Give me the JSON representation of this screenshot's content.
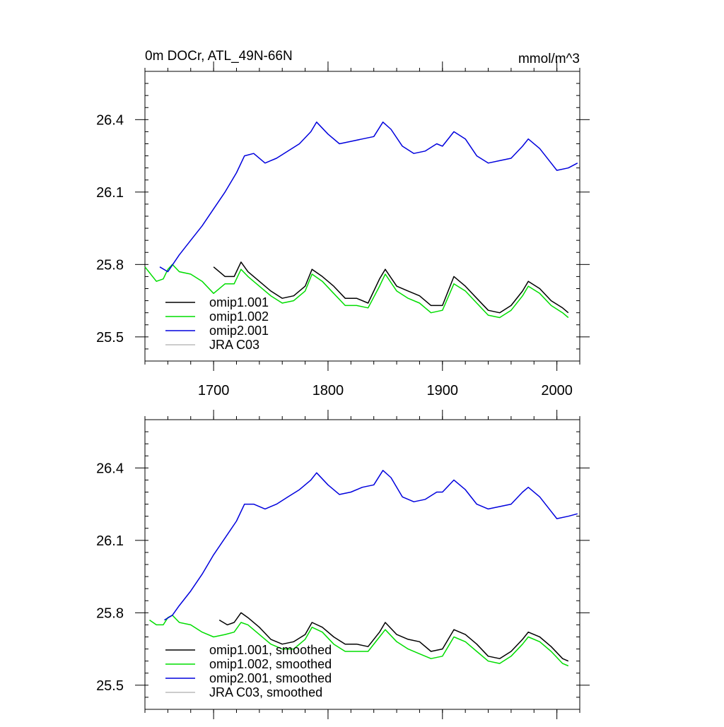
{
  "chart_data": [
    {
      "type": "line",
      "title": "0m DOCr, ATL_49N-66N",
      "units": "mmol/m^3",
      "xlim": [
        1640,
        2020
      ],
      "ylim": [
        25.4,
        26.6
      ],
      "xticks": [
        1700,
        1800,
        1900,
        2000
      ],
      "xtick_labels": [
        "1700",
        "1800",
        "1900",
        "2000"
      ],
      "yticks": [
        25.5,
        25.8,
        26.1,
        26.4
      ],
      "ytick_labels": [
        "25.5",
        "25.8",
        "26.1",
        "26.4"
      ],
      "legend_position": "bottom-left",
      "series": [
        {
          "name": "omip1.001",
          "color": "#000000",
          "x": [
            1700,
            1710,
            1718,
            1724,
            1730,
            1740,
            1750,
            1760,
            1770,
            1780,
            1786,
            1795,
            1805,
            1815,
            1825,
            1835,
            1845,
            1850,
            1860,
            1870,
            1880,
            1890,
            1900,
            1910,
            1920,
            1930,
            1940,
            1950,
            1960,
            1970,
            1975,
            1985,
            1995,
            2005,
            2010
          ],
          "y": [
            25.79,
            25.75,
            25.75,
            25.81,
            25.77,
            25.73,
            25.69,
            25.66,
            25.67,
            25.71,
            25.78,
            25.75,
            25.71,
            25.66,
            25.66,
            25.64,
            25.74,
            25.78,
            25.71,
            25.69,
            25.67,
            25.63,
            25.63,
            25.75,
            25.71,
            25.66,
            25.61,
            25.6,
            25.63,
            25.69,
            25.73,
            25.7,
            25.65,
            25.62,
            25.6
          ]
        },
        {
          "name": "omip1.002",
          "color": "#00dd00",
          "x": [
            1640,
            1650,
            1656,
            1660,
            1664,
            1670,
            1680,
            1690,
            1700,
            1710,
            1718,
            1724,
            1730,
            1740,
            1750,
            1760,
            1770,
            1780,
            1786,
            1795,
            1805,
            1815,
            1825,
            1835,
            1845,
            1850,
            1860,
            1870,
            1880,
            1890,
            1900,
            1910,
            1920,
            1930,
            1940,
            1950,
            1960,
            1970,
            1975,
            1985,
            1995,
            2005,
            2010
          ],
          "y": [
            25.79,
            25.73,
            25.74,
            25.78,
            25.8,
            25.77,
            25.76,
            25.73,
            25.68,
            25.72,
            25.72,
            25.78,
            25.75,
            25.71,
            25.67,
            25.64,
            25.65,
            25.69,
            25.76,
            25.73,
            25.68,
            25.63,
            25.63,
            25.62,
            25.71,
            25.76,
            25.69,
            25.66,
            25.64,
            25.6,
            25.61,
            25.72,
            25.69,
            25.64,
            25.59,
            25.58,
            25.61,
            25.67,
            25.71,
            25.68,
            25.63,
            25.6,
            25.58
          ]
        },
        {
          "name": "omip2.001",
          "color": "#0000dd",
          "x": [
            1653,
            1660,
            1670,
            1680,
            1690,
            1700,
            1710,
            1720,
            1727,
            1735,
            1745,
            1755,
            1765,
            1775,
            1785,
            1790,
            1800,
            1810,
            1820,
            1830,
            1840,
            1848,
            1855,
            1865,
            1875,
            1885,
            1895,
            1900,
            1910,
            1920,
            1930,
            1940,
            1950,
            1960,
            1970,
            1975,
            1985,
            1995,
            2000,
            2010,
            2018
          ],
          "y": [
            25.79,
            25.77,
            25.84,
            25.9,
            25.96,
            26.03,
            26.1,
            26.18,
            26.25,
            26.26,
            26.22,
            26.24,
            26.27,
            26.3,
            26.35,
            26.39,
            26.34,
            26.3,
            26.31,
            26.32,
            26.33,
            26.39,
            26.36,
            26.29,
            26.26,
            26.27,
            26.3,
            26.29,
            26.35,
            26.32,
            26.25,
            26.22,
            26.23,
            26.24,
            26.29,
            26.32,
            26.28,
            26.22,
            26.19,
            26.2,
            26.22
          ]
        },
        {
          "name": "JRA C03",
          "color": "#bbbbbb",
          "x": [],
          "y": []
        }
      ]
    },
    {
      "type": "line",
      "title": "",
      "units": "",
      "xlim": [
        1640,
        2020
      ],
      "ylim": [
        25.4,
        26.6
      ],
      "xticks": [
        1700,
        1800,
        1900,
        2000
      ],
      "xtick_labels": [],
      "yticks": [
        25.5,
        25.8,
        26.1,
        26.4
      ],
      "ytick_labels": [
        "25.5",
        "25.8",
        "26.1",
        "26.4"
      ],
      "legend_position": "bottom-left",
      "series": [
        {
          "name": "omip1.001, smoothed",
          "color": "#000000",
          "x": [
            1705,
            1712,
            1718,
            1724,
            1730,
            1740,
            1750,
            1760,
            1770,
            1780,
            1786,
            1795,
            1805,
            1815,
            1825,
            1835,
            1845,
            1850,
            1860,
            1870,
            1880,
            1890,
            1900,
            1910,
            1920,
            1930,
            1940,
            1950,
            1960,
            1970,
            1975,
            1985,
            1995,
            2005,
            2010
          ],
          "y": [
            25.77,
            25.75,
            25.76,
            25.8,
            25.78,
            25.74,
            25.69,
            25.67,
            25.68,
            25.71,
            25.76,
            25.74,
            25.7,
            25.67,
            25.67,
            25.66,
            25.72,
            25.76,
            25.71,
            25.69,
            25.68,
            25.64,
            25.65,
            25.73,
            25.71,
            25.67,
            25.62,
            25.61,
            25.64,
            25.69,
            25.72,
            25.7,
            25.66,
            25.61,
            25.6
          ]
        },
        {
          "name": "omip1.002, smoothed",
          "color": "#00dd00",
          "x": [
            1644,
            1650,
            1656,
            1660,
            1664,
            1670,
            1680,
            1690,
            1700,
            1710,
            1718,
            1724,
            1730,
            1740,
            1750,
            1760,
            1770,
            1780,
            1786,
            1795,
            1805,
            1815,
            1825,
            1835,
            1845,
            1850,
            1860,
            1870,
            1880,
            1890,
            1900,
            1910,
            1920,
            1930,
            1940,
            1950,
            1960,
            1970,
            1975,
            1985,
            1995,
            2005,
            2010
          ],
          "y": [
            25.77,
            25.75,
            25.75,
            25.78,
            25.79,
            25.76,
            25.75,
            25.72,
            25.7,
            25.71,
            25.72,
            25.76,
            25.75,
            25.71,
            25.67,
            25.65,
            25.65,
            25.69,
            25.74,
            25.72,
            25.67,
            25.64,
            25.64,
            25.64,
            25.7,
            25.73,
            25.68,
            25.65,
            25.63,
            25.61,
            25.62,
            25.7,
            25.68,
            25.64,
            25.6,
            25.59,
            25.62,
            25.67,
            25.7,
            25.68,
            25.64,
            25.59,
            25.58
          ]
        },
        {
          "name": "omip2.001, smoothed",
          "color": "#0000dd",
          "x": [
            1657,
            1664,
            1670,
            1680,
            1690,
            1700,
            1710,
            1720,
            1727,
            1735,
            1745,
            1755,
            1765,
            1775,
            1785,
            1790,
            1800,
            1810,
            1820,
            1830,
            1840,
            1848,
            1855,
            1865,
            1875,
            1885,
            1895,
            1900,
            1910,
            1920,
            1930,
            1940,
            1950,
            1960,
            1970,
            1975,
            1985,
            1995,
            2000,
            2010,
            2018
          ],
          "y": [
            25.77,
            25.79,
            25.83,
            25.89,
            25.96,
            26.04,
            26.11,
            26.18,
            26.25,
            26.25,
            26.23,
            26.25,
            26.28,
            26.31,
            26.35,
            26.38,
            26.33,
            26.29,
            26.3,
            26.32,
            26.33,
            26.39,
            26.36,
            26.28,
            26.26,
            26.27,
            26.3,
            26.3,
            26.35,
            26.31,
            26.25,
            26.23,
            26.24,
            26.25,
            26.3,
            26.32,
            26.28,
            26.22,
            26.19,
            26.2,
            26.21
          ]
        },
        {
          "name": "JRA C03, smoothed",
          "color": "#bbbbbb",
          "x": [],
          "y": []
        }
      ]
    }
  ]
}
